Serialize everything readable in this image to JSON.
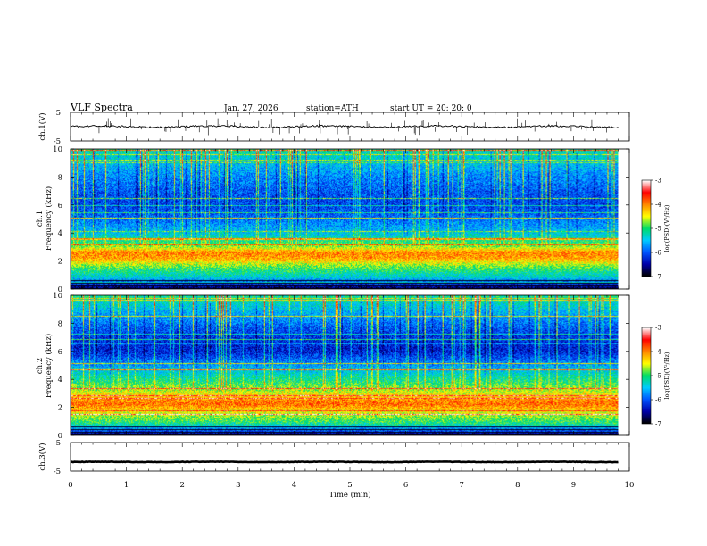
{
  "header": {
    "title": "VLF  Spectra",
    "date": "Jan. 27, 2026",
    "station": "station=ATH",
    "start": "start  UT  =    20: 20: 0"
  },
  "chart_data": [
    {
      "type": "line",
      "panel": "ch1-waveform",
      "ylabel": "ch.1(V)",
      "yticks": [
        "5",
        "-5"
      ],
      "ylim": [
        -5,
        5
      ],
      "xlim": [
        0,
        10
      ],
      "data_end_min": 9.8,
      "mean_level": 0,
      "noise_amplitude": 0.6
    },
    {
      "type": "heatmap",
      "panel": "ch1-spectrogram",
      "ylabel": "Frequency  (kHz)",
      "ylabel_channel": "ch.1",
      "yticks": [
        "0",
        "2",
        "4",
        "6",
        "8",
        "10"
      ],
      "ylim": [
        0,
        10
      ],
      "xlim": [
        0,
        10
      ],
      "data_end_min": 9.8,
      "band_levels": [
        {
          "f": 0.0,
          "v": -6.8
        },
        {
          "f": 0.3,
          "v": -6.2
        },
        {
          "f": 0.8,
          "v": -5.4
        },
        {
          "f": 1.5,
          "v": -4.9
        },
        {
          "f": 2.2,
          "v": -4.1
        },
        {
          "f": 2.6,
          "v": -4.0
        },
        {
          "f": 3.0,
          "v": -4.7
        },
        {
          "f": 3.6,
          "v": -5.2
        },
        {
          "f": 4.2,
          "v": -5.6
        },
        {
          "f": 5.0,
          "v": -5.9
        },
        {
          "f": 6.0,
          "v": -6.1
        },
        {
          "f": 7.0,
          "v": -6.0
        },
        {
          "f": 8.0,
          "v": -5.8
        },
        {
          "f": 9.0,
          "v": -5.5
        },
        {
          "f": 10.0,
          "v": -5.2
        }
      ]
    },
    {
      "type": "heatmap",
      "panel": "ch2-spectrogram",
      "ylabel": "Frequency  (kHz)",
      "ylabel_channel": "ch.2",
      "yticks": [
        "0",
        "2",
        "4",
        "6",
        "8",
        "10"
      ],
      "ylim": [
        0,
        10
      ],
      "xlim": [
        0,
        10
      ],
      "data_end_min": 9.8,
      "band_levels": [
        {
          "f": 0.0,
          "v": -6.8
        },
        {
          "f": 0.3,
          "v": -6.0
        },
        {
          "f": 0.8,
          "v": -5.1
        },
        {
          "f": 1.5,
          "v": -4.6
        },
        {
          "f": 2.2,
          "v": -3.9
        },
        {
          "f": 2.6,
          "v": -4.1
        },
        {
          "f": 3.0,
          "v": -4.5
        },
        {
          "f": 3.6,
          "v": -4.9
        },
        {
          "f": 4.2,
          "v": -5.2
        },
        {
          "f": 5.0,
          "v": -5.7
        },
        {
          "f": 6.0,
          "v": -6.3
        },
        {
          "f": 7.0,
          "v": -6.2
        },
        {
          "f": 8.0,
          "v": -5.9
        },
        {
          "f": 9.0,
          "v": -5.5
        },
        {
          "f": 10.0,
          "v": -5.1
        }
      ]
    },
    {
      "type": "line",
      "panel": "ch3-waveform",
      "ylabel": "ch.3(V)",
      "yticks": [
        "5",
        "-5"
      ],
      "ylim": [
        -5,
        5
      ],
      "xlim": [
        0,
        10
      ],
      "data_end_min": 9.8,
      "mean_level": -1.8,
      "noise_amplitude": 0.15
    }
  ],
  "x_axis": {
    "label": "Time  (min)",
    "ticks": [
      "0",
      "1",
      "2",
      "3",
      "4",
      "5",
      "6",
      "7",
      "8",
      "9",
      "10"
    ]
  },
  "colorbars": [
    {
      "label": "log(PSD)(V²/Hz)",
      "ticks": [
        "-3",
        "-4",
        "-5",
        "-6",
        "-7"
      ],
      "range": [
        -7,
        -3
      ]
    },
    {
      "label": "log(PSD)(V²/Hz)",
      "ticks": [
        "-3",
        "-4",
        "-5",
        "-6",
        "-7"
      ],
      "range": [
        -7,
        -3
      ]
    }
  ],
  "colors": {
    "scale": [
      "#000000",
      "#0000aa",
      "#0055ff",
      "#00ccff",
      "#00dd66",
      "#ffff00",
      "#ff8800",
      "#ff0000",
      "#ffffff"
    ]
  }
}
